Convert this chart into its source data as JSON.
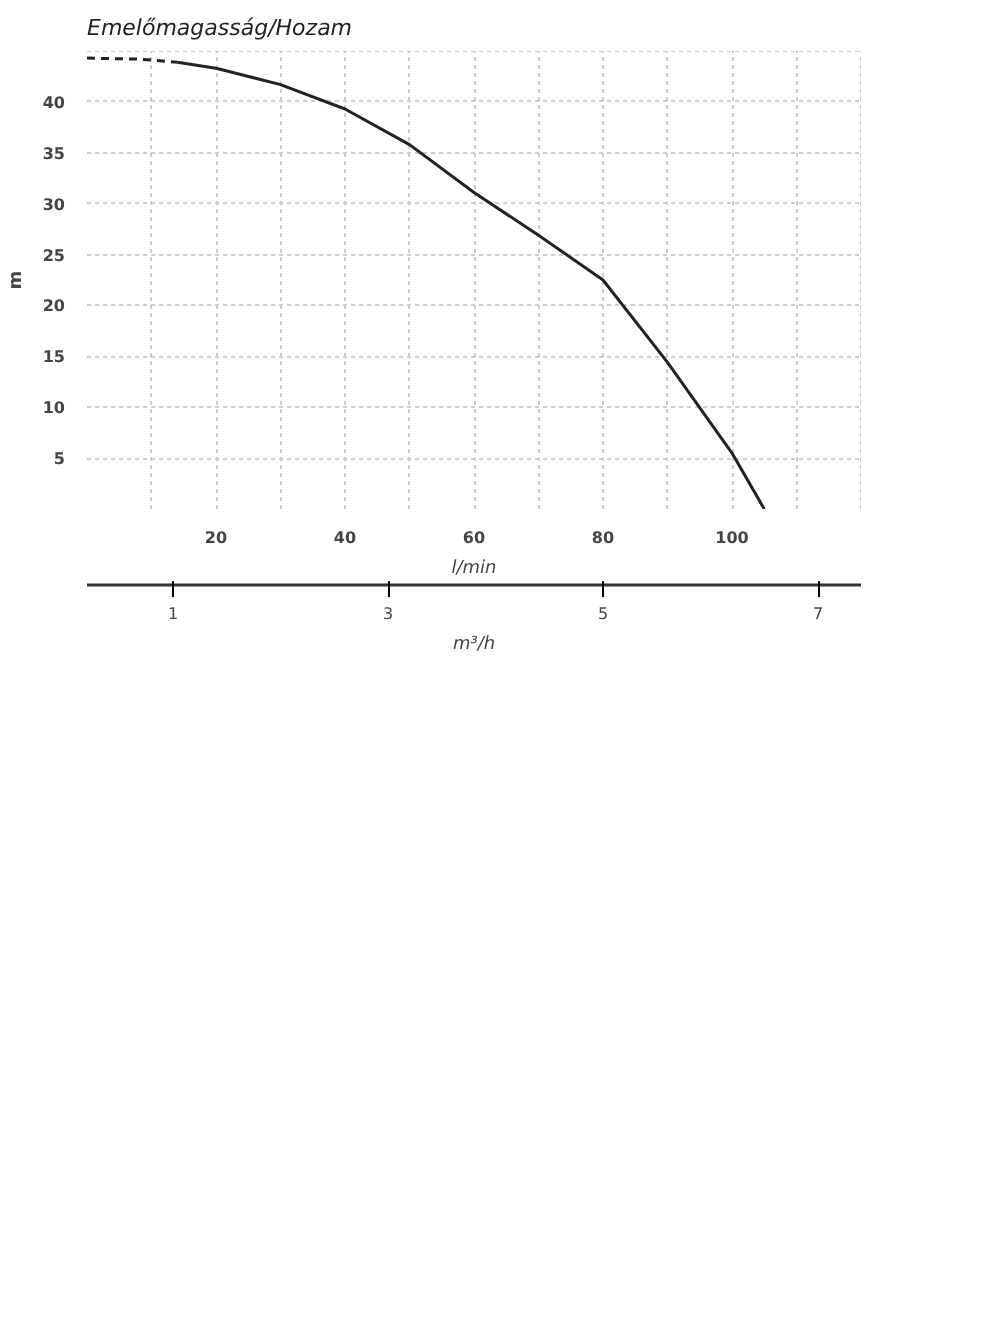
{
  "chart_data": {
    "type": "line",
    "title": "Emelőmagasság/Hozam",
    "ylabel": "m",
    "xlabel": "l/min",
    "x2label": "m³/h",
    "series": [
      {
        "color": "#222222",
        "line_style": "dashed",
        "x": [
          0,
          8,
          14
        ],
        "values": [
          44.3,
          44.2,
          43.9
        ]
      },
      {
        "color": "#222222",
        "line_style": "solid",
        "x": [
          14,
          20,
          30,
          40,
          50,
          60,
          70,
          80,
          90,
          100,
          105
        ],
        "values": [
          43.9,
          43.3,
          41.7,
          39.3,
          35.8,
          31.1,
          26.9,
          22.5,
          14.4,
          5.5,
          0
        ]
      }
    ],
    "xlim": [
      0,
      120
    ],
    "ylim": [
      0,
      45
    ],
    "xticks": [
      {
        "value": 10,
        "label": null
      },
      20,
      {
        "value": 30,
        "label": null
      },
      40,
      {
        "value": 50,
        "label": null
      },
      60,
      {
        "value": 70,
        "label": null
      },
      80,
      {
        "value": 90,
        "label": null
      },
      100,
      {
        "value": 110,
        "label": null
      },
      {
        "value": 120,
        "label": null
      }
    ],
    "yticks": [
      5,
      10,
      15,
      20,
      25,
      30,
      35,
      40,
      {
        "value": 45,
        "label": null
      }
    ],
    "x2lim": [
      0.2,
      7.4
    ],
    "x2ticks": [
      1,
      3,
      5,
      7
    ],
    "grid": true,
    "marker": "none"
  }
}
